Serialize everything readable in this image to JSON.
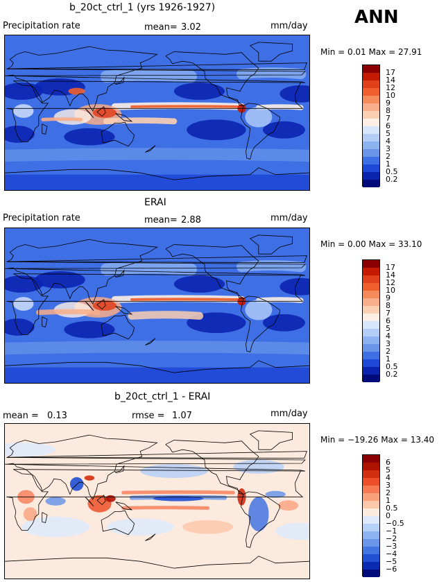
{
  "season": "ANN",
  "units": "mm/day",
  "panels": [
    {
      "id": "model",
      "title": "b_20ct_ctrl_1 (yrs 1926-1927)",
      "left_label": "Precipitation rate",
      "mean_label": "mean=",
      "mean_value": "3.02",
      "minmax_text": "Min =   0.01 Max =  27.91",
      "field": "precip"
    },
    {
      "id": "obs",
      "title": "ERAI",
      "left_label": "Precipitation rate",
      "mean_label": "mean=",
      "mean_value": "2.88",
      "minmax_text": "Min =   0.00 Max =  33.10",
      "field": "precip"
    },
    {
      "id": "diff",
      "title": "b_20ct_ctrl_1 - ERAI",
      "left_label": "mean =",
      "left_value": "0.13",
      "rmse_label": "rmse =",
      "rmse_value": "1.07",
      "minmax_text": "Min = −19.26 Max =  13.40",
      "field": "diff"
    }
  ],
  "colorbars": {
    "precip": {
      "labels": [
        "17",
        "14",
        "12",
        "10",
        "9",
        "8",
        "7",
        "6",
        "5",
        "4",
        "3",
        "2",
        "1",
        "0.5",
        "0.2"
      ],
      "colors": [
        "#8b0000",
        "#c41a00",
        "#e0401a",
        "#f0602e",
        "#f58a5a",
        "#f8ae8a",
        "#fbcfb2",
        "#fdefe6",
        "#d8e6fb",
        "#b4cdf6",
        "#8db2f0",
        "#6a96ea",
        "#3f6fe4",
        "#1f48d6",
        "#0b24b0",
        "#000a7a"
      ]
    },
    "diff": {
      "labels": [
        "6",
        "5",
        "4",
        "3",
        "2",
        "1",
        "0.5",
        "0",
        "−0.5",
        "−1",
        "−2",
        "−3",
        "−4",
        "−5",
        "−6"
      ],
      "colors": [
        "#8b0000",
        "#b01200",
        "#d42e10",
        "#ec5028",
        "#f57a52",
        "#f9a07c",
        "#fcc7ab",
        "#fdeade",
        "#ddeafc",
        "#b6d0f7",
        "#8db3f1",
        "#6a96ea",
        "#4375e2",
        "#2150d4",
        "#0b2cb0",
        "#000a7a"
      ]
    }
  }
}
